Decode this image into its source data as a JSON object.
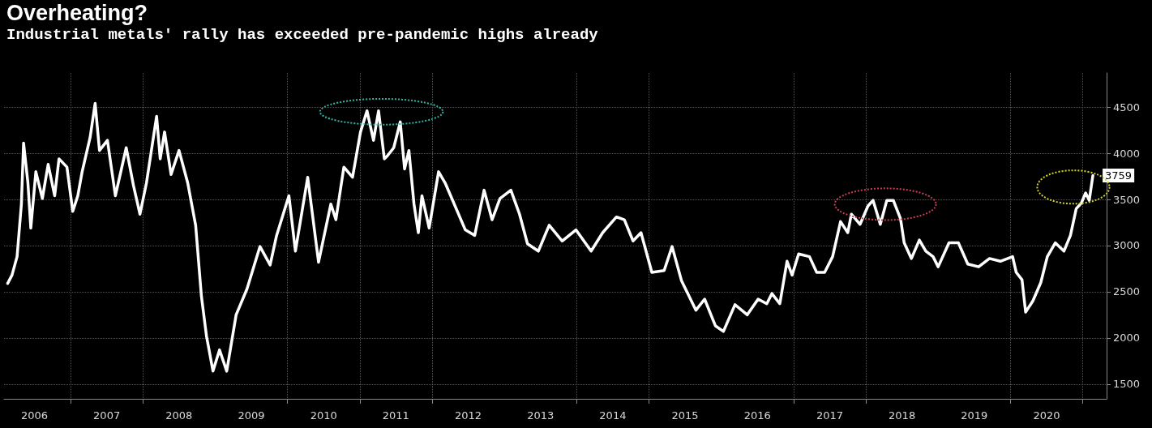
{
  "chart_data": {
    "type": "line",
    "title": "Overheating?",
    "subtitle": "Industrial metals' rally has exceeded pre-pandemic highs already",
    "x": [
      2006.13,
      2006.19,
      2006.26,
      2006.32,
      2006.35,
      2006.41,
      2006.45,
      2006.52,
      2006.61,
      2006.69,
      2006.78,
      2006.84,
      2006.95,
      2007.03,
      2007.1,
      2007.16,
      2007.27,
      2007.34,
      2007.4,
      2007.51,
      2007.62,
      2007.77,
      2007.87,
      2007.96,
      2008.05,
      2008.19,
      2008.24,
      2008.3,
      2008.39,
      2008.5,
      2008.62,
      2008.73,
      2008.81,
      2008.88,
      2008.97,
      2009.06,
      2009.16,
      2009.29,
      2009.44,
      2009.62,
      2009.76,
      2009.85,
      2010.02,
      2010.11,
      2010.28,
      2010.43,
      2010.6,
      2010.67,
      2010.78,
      2010.9,
      2011.01,
      2011.1,
      2011.19,
      2011.26,
      2011.34,
      2011.38,
      2011.47,
      2011.56,
      2011.62,
      2011.68,
      2011.75,
      2011.81,
      2011.86,
      2011.96,
      2012.09,
      2012.18,
      2012.29,
      2012.46,
      2012.59,
      2012.72,
      2012.83,
      2012.94,
      2013.09,
      2013.21,
      2013.32,
      2013.47,
      2013.62,
      2013.8,
      2013.99,
      2014.2,
      2014.36,
      2014.55,
      2014.66,
      2014.78,
      2014.89,
      2015.04,
      2015.21,
      2015.32,
      2015.45,
      2015.65,
      2015.77,
      2015.92,
      2016.03,
      2016.19,
      2016.36,
      2016.51,
      2016.63,
      2016.7,
      2016.81,
      2016.91,
      2016.98,
      2017.07,
      2017.22,
      2017.32,
      2017.43,
      2017.54,
      2017.65,
      2017.75,
      2017.8,
      2017.92,
      2018.03,
      2018.1,
      2018.2,
      2018.29,
      2018.38,
      2018.48,
      2018.53,
      2018.63,
      2018.74,
      2018.83,
      2018.93,
      2019.0,
      2019.15,
      2019.28,
      2019.41,
      2019.56,
      2019.71,
      2019.86,
      2020.03,
      2020.08,
      2020.16,
      2020.21,
      2020.31,
      2020.42,
      2020.51,
      2020.62,
      2020.74,
      2020.83,
      2020.91,
      2020.98,
      2021.04,
      2021.09,
      2021.14
    ],
    "values": [
      2590,
      2680,
      2880,
      3450,
      4110,
      3680,
      3190,
      3800,
      3510,
      3880,
      3540,
      3940,
      3850,
      3370,
      3540,
      3800,
      4170,
      4540,
      4030,
      4140,
      3540,
      4060,
      3650,
      3340,
      3680,
      4400,
      3940,
      4230,
      3770,
      4030,
      3680,
      3220,
      2450,
      2020,
      1640,
      1870,
      1640,
      2250,
      2530,
      2990,
      2790,
      3110,
      3540,
      2940,
      3740,
      2820,
      3450,
      3280,
      3850,
      3740,
      4230,
      4460,
      4140,
      4460,
      3940,
      3970,
      4060,
      4340,
      3830,
      4030,
      3450,
      3140,
      3540,
      3190,
      3800,
      3680,
      3480,
      3170,
      3110,
      3600,
      3280,
      3510,
      3600,
      3340,
      3020,
      2940,
      3220,
      3050,
      3170,
      2940,
      3140,
      3310,
      3280,
      3050,
      3140,
      2710,
      2730,
      2990,
      2620,
      2300,
      2420,
      2130,
      2070,
      2360,
      2250,
      2420,
      2370,
      2480,
      2370,
      2830,
      2680,
      2910,
      2880,
      2710,
      2710,
      2880,
      3260,
      3140,
      3340,
      3230,
      3430,
      3490,
      3230,
      3490,
      3490,
      3290,
      3030,
      2860,
      3060,
      2940,
      2880,
      2770,
      3030,
      3030,
      2800,
      2770,
      2860,
      2830,
      2880,
      2710,
      2630,
      2280,
      2400,
      2600,
      2880,
      3030,
      2940,
      3110,
      3400,
      3460,
      3570,
      3490,
      3759
    ],
    "value_labels": [
      null,
      null,
      null,
      null,
      null,
      null,
      null,
      null,
      null,
      null,
      null,
      null,
      null,
      null,
      null,
      null,
      null,
      null,
      null,
      null,
      null,
      null,
      null,
      null,
      null,
      null,
      null,
      null,
      null,
      null,
      null,
      null,
      null,
      null,
      null,
      null,
      null,
      null,
      null,
      null,
      null,
      null,
      null,
      null,
      null,
      null,
      null,
      null,
      null,
      null,
      null,
      null,
      null,
      null,
      null,
      null,
      null,
      null,
      null,
      null,
      null,
      null,
      null,
      null,
      null,
      null,
      null,
      null,
      null,
      null,
      null,
      null,
      null,
      null,
      null,
      null,
      null,
      null,
      null,
      null,
      null,
      null,
      null,
      null,
      null,
      null,
      null,
      null,
      null,
      null,
      null,
      null,
      null,
      null,
      null,
      null,
      null,
      null,
      null,
      null,
      null,
      null,
      null,
      null,
      null,
      null,
      null,
      null,
      null,
      null,
      null,
      null,
      null,
      null,
      null,
      null,
      null,
      null,
      null,
      null,
      null,
      null,
      null,
      null,
      null,
      null,
      null,
      null,
      null,
      null,
      null,
      null,
      null,
      null,
      null,
      null,
      null,
      null,
      null,
      null,
      null,
      null,
      "3759"
    ],
    "color": "#ffffff",
    "marker": "none",
    "xlim": [
      2006.08,
      2021.33
    ],
    "xticks": [
      {
        "value": 2006.5,
        "label": "2006"
      },
      {
        "value": 2007.5,
        "label": "2007"
      },
      {
        "value": 2008.5,
        "label": "2008"
      },
      {
        "value": 2009.5,
        "label": "2009"
      },
      {
        "value": 2010.5,
        "label": "2010"
      },
      {
        "value": 2011.5,
        "label": "2011"
      },
      {
        "value": 2012.5,
        "label": "2012"
      },
      {
        "value": 2013.5,
        "label": "2013"
      },
      {
        "value": 2014.5,
        "label": "2014"
      },
      {
        "value": 2015.5,
        "label": "2015"
      },
      {
        "value": 2016.5,
        "label": "2016"
      },
      {
        "value": 2017.5,
        "label": "2017"
      },
      {
        "value": 2018.5,
        "label": "2018"
      },
      {
        "value": 2019.5,
        "label": "2019"
      },
      {
        "value": 2020.5,
        "label": "2020"
      },
      {
        "value": 2007,
        "label": null
      },
      {
        "value": 2008,
        "label": null
      },
      {
        "value": 2010,
        "label": null
      },
      {
        "value": 2011,
        "label": null
      },
      {
        "value": 2012,
        "label": null
      },
      {
        "value": 2014,
        "label": null
      },
      {
        "value": 2015,
        "label": null
      },
      {
        "value": 2017,
        "label": null
      },
      {
        "value": 2018,
        "label": null
      },
      {
        "value": 2020,
        "label": null
      },
      {
        "value": 2021,
        "label": null
      }
    ],
    "ylim": [
      1340,
      4870
    ],
    "yticks": [
      1500,
      2000,
      2500,
      3000,
      3500,
      4000,
      4500
    ],
    "grid": true
  }
}
